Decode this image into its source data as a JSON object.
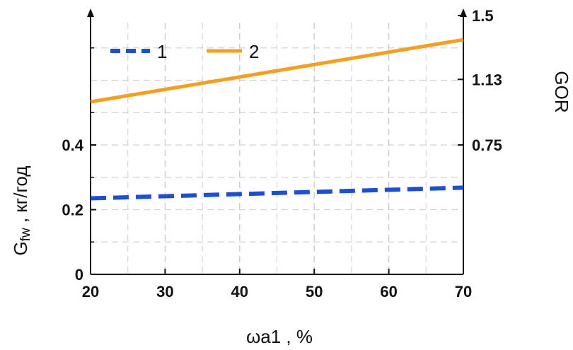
{
  "chart_data": {
    "type": "line",
    "x": [
      20,
      30,
      40,
      50,
      60,
      70
    ],
    "xlim": [
      20,
      70
    ],
    "xticks": [
      "20",
      "30",
      "40",
      "50",
      "60",
      "70"
    ],
    "xlabel": "ωa1 , %",
    "ylabel_left_main": "G",
    "ylabel_left_sub": "fw",
    "ylabel_left_rest": " , кг/год",
    "ylim_left": [
      0,
      0.8
    ],
    "yticks_left": [
      "0",
      "0.2",
      "0.4"
    ],
    "ylabel_right": "GOR",
    "ylim_right": [
      0,
      1.5
    ],
    "yticks_right": [
      "0.75",
      "1.13",
      "1.5"
    ],
    "grid": true,
    "legend_position": "top-left",
    "series": [
      {
        "name": "1",
        "axis": "left",
        "style": "dashed",
        "color": "#1f4fd1",
        "x": [
          20,
          70
        ],
        "values": [
          0.235,
          0.268
        ]
      },
      {
        "name": "2",
        "axis": "right",
        "style": "solid",
        "color": "#f2a024",
        "x": [
          20,
          70
        ],
        "values": [
          1.0,
          1.36
        ]
      }
    ]
  }
}
